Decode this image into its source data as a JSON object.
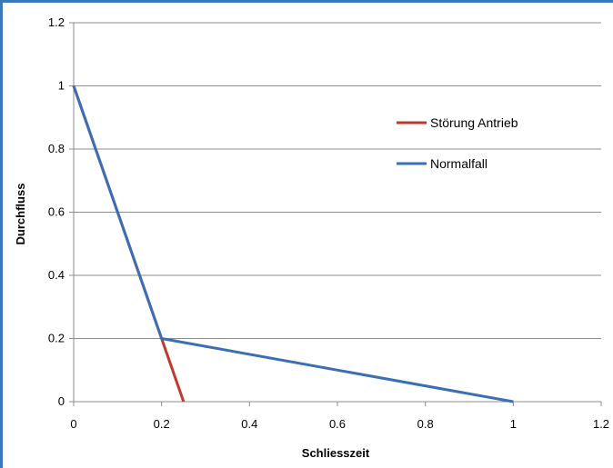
{
  "chart_data": {
    "type": "line",
    "title": "",
    "xlabel": "Schliesszeit",
    "ylabel": "Durchfluss",
    "xlim": [
      0,
      1.2
    ],
    "ylim": [
      0,
      1.2
    ],
    "x_ticks": [
      0,
      0.2,
      0.4,
      0.6,
      0.8,
      1,
      1.2
    ],
    "x_tick_labels": [
      "0",
      "0.2",
      "0.4",
      "0.6",
      "0.8",
      "1",
      "1.2"
    ],
    "y_ticks": [
      0,
      0.2,
      0.4,
      0.6,
      0.8,
      1,
      1.2
    ],
    "y_tick_labels": [
      "0",
      "0.2",
      "0.4",
      "0.6",
      "0.8",
      "1",
      "1.2"
    ],
    "grid": "horizontal",
    "legend_position": "right",
    "series": [
      {
        "name": "Störung Antrieb",
        "color": "#c0392b",
        "x": [
          0,
          0.2,
          0.25
        ],
        "y": [
          1,
          0.2,
          0
        ]
      },
      {
        "name": "Normalfall",
        "color": "#3a6fb5",
        "x": [
          0,
          0.2,
          1
        ],
        "y": [
          1,
          0.2,
          0
        ]
      }
    ]
  }
}
